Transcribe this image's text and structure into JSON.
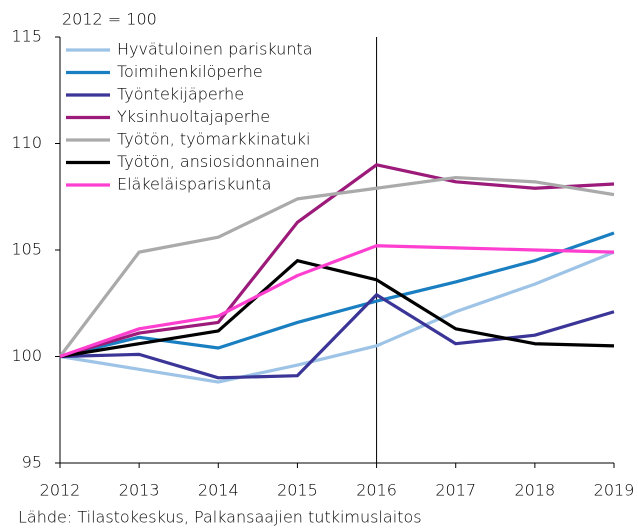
{
  "chart_data": {
    "type": "line",
    "unit_label": "2012 = 100",
    "source": "Lähde: Tilastokeskus, Palkansaajien tutkimuslaitos",
    "x": [
      2012,
      2013,
      2014,
      2015,
      2016,
      2017,
      2018,
      2019
    ],
    "xlim": [
      2012,
      2019
    ],
    "xticks": [
      2012,
      2013,
      2014,
      2015,
      2016,
      2017,
      2018,
      2019
    ],
    "ylim": [
      95,
      115
    ],
    "yticks": [
      95,
      100,
      105,
      110,
      115
    ],
    "vline": 2016,
    "grid": false,
    "legend": "upper left",
    "series": [
      {
        "name": "Hyvätuloinen pariskunta",
        "color": "#9dc3e6",
        "values": [
          100,
          99.4,
          98.8,
          99.6,
          100.5,
          102.1,
          103.4,
          104.9
        ]
      },
      {
        "name": "Toimihenkilöperhe",
        "color": "#1a7fc1",
        "values": [
          100,
          100.9,
          100.4,
          101.6,
          102.6,
          103.5,
          104.5,
          105.8
        ]
      },
      {
        "name": "Työntekijäperhe",
        "color": "#3a3597",
        "values": [
          100,
          100.1,
          99.0,
          99.1,
          102.9,
          100.6,
          101.0,
          102.1
        ]
      },
      {
        "name": "Yksinhuoltajaperhe",
        "color": "#9b1a7a",
        "values": [
          100,
          101.1,
          101.6,
          106.3,
          109.0,
          108.2,
          107.9,
          108.1
        ]
      },
      {
        "name": "Työtön, työmarkkinatuki",
        "color": "#aaaaaa",
        "values": [
          100,
          104.9,
          105.6,
          107.4,
          107.9,
          108.4,
          108.2,
          107.6
        ]
      },
      {
        "name": "Työtön, ansiosidonnainen",
        "color": "#000000",
        "values": [
          100,
          100.6,
          101.2,
          104.5,
          103.6,
          101.3,
          100.6,
          100.5
        ]
      },
      {
        "name": "Eläkeläispariskunta",
        "color": "#ff3fd0",
        "values": [
          100,
          101.3,
          101.9,
          103.8,
          105.2,
          105.1,
          105.0,
          104.9
        ]
      }
    ]
  }
}
